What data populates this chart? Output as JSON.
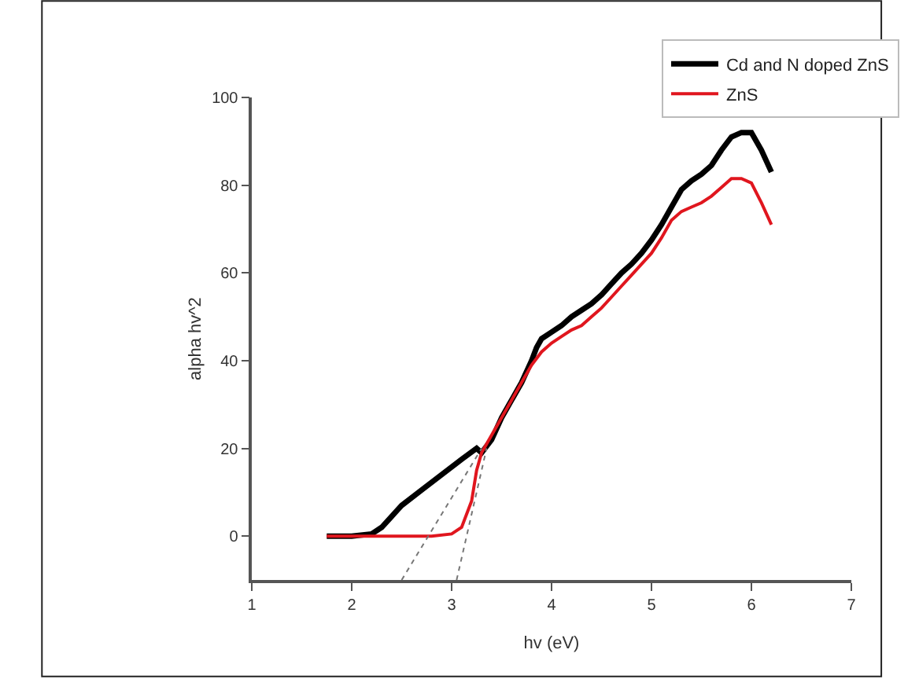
{
  "chart_data": {
    "type": "line",
    "xlabel": "hv (eV)",
    "ylabel": "alpha hv^2",
    "xlim": [
      1,
      7
    ],
    "xticks": [
      1,
      2,
      3,
      4,
      5,
      6,
      7
    ],
    "ylim": [
      -10,
      100
    ],
    "yticks": [
      0,
      20,
      40,
      60,
      80,
      100
    ],
    "grid": false,
    "legend": "top right",
    "marker": "none",
    "line_style": "solid",
    "series": [
      {
        "name": "Cd and N doped ZnS",
        "color": "#000000",
        "x": [
          1.75,
          2.0,
          2.2,
          2.3,
          2.4,
          2.5,
          2.7,
          2.9,
          3.1,
          3.25,
          3.3,
          3.4,
          3.5,
          3.6,
          3.7,
          3.8,
          3.85,
          3.9,
          4.0,
          4.1,
          4.2,
          4.3,
          4.4,
          4.5,
          4.6,
          4.7,
          4.8,
          4.9,
          5.0,
          5.1,
          5.2,
          5.3,
          5.4,
          5.5,
          5.6,
          5.7,
          5.8,
          5.9,
          6.0,
          6.1,
          6.2
        ],
        "values": [
          0,
          0,
          0.5,
          2,
          4.5,
          7,
          10.5,
          14,
          17.5,
          20,
          19,
          22,
          27,
          31,
          35,
          40,
          43,
          45,
          46.5,
          48,
          50,
          51.5,
          53,
          55,
          57.5,
          60,
          62,
          64.5,
          67.5,
          71,
          75,
          79,
          81,
          82.5,
          84.5,
          88,
          91,
          92,
          92,
          88,
          83
        ]
      },
      {
        "name": "ZnS",
        "color": "#e0161e",
        "x": [
          1.75,
          2.5,
          2.8,
          3.0,
          3.1,
          3.2,
          3.25,
          3.3,
          3.4,
          3.5,
          3.6,
          3.7,
          3.8,
          3.9,
          4.0,
          4.1,
          4.2,
          4.3,
          4.4,
          4.5,
          4.6,
          4.7,
          4.8,
          4.9,
          5.0,
          5.1,
          5.2,
          5.3,
          5.4,
          5.5,
          5.6,
          5.7,
          5.8,
          5.9,
          6.0,
          6.1,
          6.2
        ],
        "values": [
          0,
          0,
          0,
          0.5,
          2,
          8,
          15,
          19,
          23,
          27,
          31,
          35,
          39,
          42,
          44,
          45.5,
          47,
          48,
          50,
          52,
          54.5,
          57,
          59.5,
          62,
          64.5,
          68,
          72,
          74,
          75,
          76,
          77.5,
          79.5,
          81.5,
          81.5,
          80.5,
          76,
          71
        ]
      },
      {
        "type": "line",
        "color": "#777777",
        "line_style": "dotted",
        "x": [
          2.5,
          3.3
        ],
        "values": [
          -10,
          20
        ]
      },
      {
        "type": "line",
        "color": "#777777",
        "line_style": "dotted",
        "x": [
          3.05,
          3.35
        ],
        "values": [
          -10,
          20
        ]
      }
    ]
  }
}
